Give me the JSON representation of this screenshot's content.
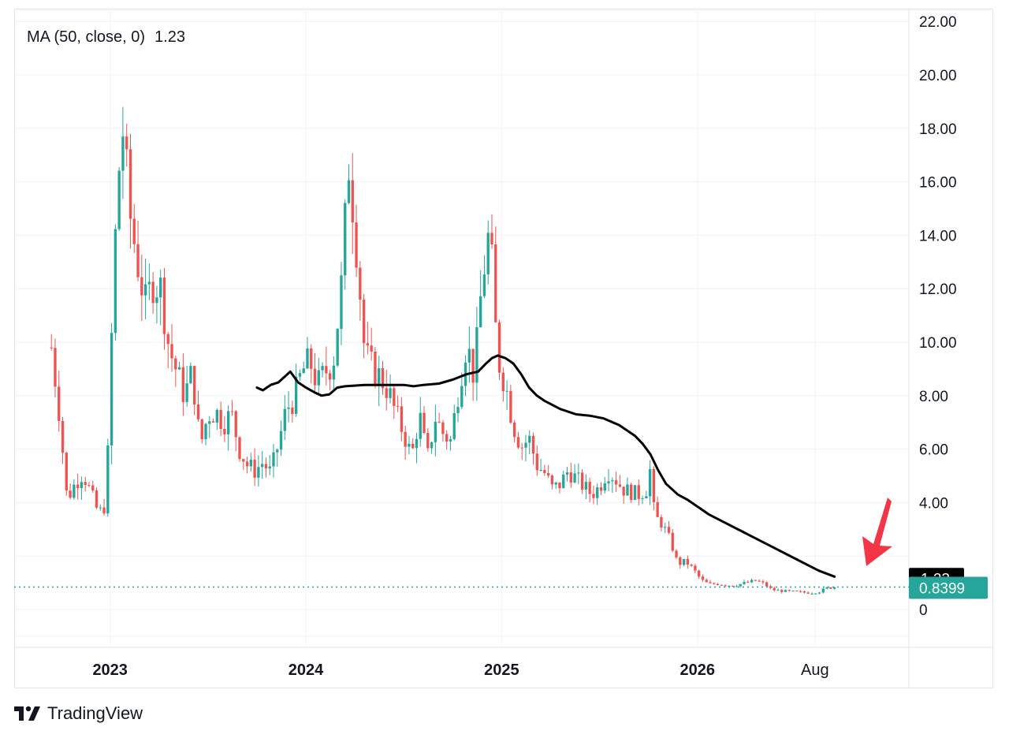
{
  "legend": {
    "label": "MA (50, close, 0)",
    "value": "1.23"
  },
  "brand": {
    "name": "TradingView"
  },
  "colors": {
    "up": "#26a69a",
    "down": "#ef5350",
    "ma": "#000000",
    "arrow": "#f23645",
    "grid": "#f0f3fa",
    "text": "#131722"
  },
  "price_tags": {
    "ma": "1.23",
    "last": "0.8399"
  },
  "chart_data": {
    "type": "candlestick",
    "symbol_interval": "weekly",
    "y_axis": {
      "ticks": [
        0,
        4,
        6,
        8,
        10,
        12,
        14,
        16,
        18,
        20,
        22
      ],
      "tick_labels": [
        "0",
        "4.00",
        "6.00",
        "8.00",
        "10.00",
        "12.00",
        "14.00",
        "16.00",
        "18.00",
        "20.00",
        "22.00"
      ],
      "range": [
        -1.5,
        22.5
      ],
      "position": "right"
    },
    "x_axis": {
      "ticks": [
        2023,
        2024,
        2025,
        2026,
        2026.6
      ],
      "tick_labels": [
        "2023",
        "2024",
        "2025",
        "2026",
        "Aug"
      ],
      "range": [
        2022.51,
        2027.08
      ]
    },
    "last_price": 0.8399,
    "ma": {
      "name": "MA (50, close, 0)",
      "last_value": 1.23
    },
    "price_checkpoints": [
      [
        2022.7,
        9.8
      ],
      [
        2022.74,
        7.4
      ],
      [
        2022.78,
        4.1
      ],
      [
        2022.82,
        4.7
      ],
      [
        2022.86,
        5.1
      ],
      [
        2022.9,
        4.4
      ],
      [
        2022.94,
        3.6
      ],
      [
        2022.98,
        3.9
      ],
      [
        2023.02,
        13.0
      ],
      [
        2023.06,
        18.4
      ],
      [
        2023.1,
        14.8
      ],
      [
        2023.14,
        13.0
      ],
      [
        2023.18,
        11.4
      ],
      [
        2023.22,
        12.3
      ],
      [
        2023.26,
        12.0
      ],
      [
        2023.3,
        9.8
      ],
      [
        2023.34,
        8.9
      ],
      [
        2023.38,
        8.0
      ],
      [
        2023.42,
        8.9
      ],
      [
        2023.46,
        6.1
      ],
      [
        2023.5,
        7.3
      ],
      [
        2023.54,
        7.4
      ],
      [
        2023.58,
        7.0
      ],
      [
        2023.62,
        7.3
      ],
      [
        2023.66,
        6.0
      ],
      [
        2023.7,
        5.4
      ],
      [
        2023.74,
        5.2
      ],
      [
        2023.78,
        5.5
      ],
      [
        2023.82,
        5.1
      ],
      [
        2023.86,
        6.2
      ],
      [
        2023.9,
        7.5
      ],
      [
        2023.94,
        7.9
      ],
      [
        2023.98,
        8.9
      ],
      [
        2024.02,
        9.3
      ],
      [
        2024.06,
        8.4
      ],
      [
        2024.1,
        8.9
      ],
      [
        2024.14,
        9.3
      ],
      [
        2024.18,
        12.0
      ],
      [
        2024.22,
        16.8
      ],
      [
        2024.26,
        13.5
      ],
      [
        2024.3,
        9.6
      ],
      [
        2024.34,
        9.0
      ],
      [
        2024.38,
        8.7
      ],
      [
        2024.42,
        8.2
      ],
      [
        2024.46,
        7.3
      ],
      [
        2024.5,
        6.6
      ],
      [
        2024.54,
        5.7
      ],
      [
        2024.58,
        7.3
      ],
      [
        2024.62,
        5.6
      ],
      [
        2024.66,
        7.2
      ],
      [
        2024.7,
        6.6
      ],
      [
        2024.74,
        6.3
      ],
      [
        2024.78,
        8.3
      ],
      [
        2024.82,
        10.0
      ],
      [
        2024.86,
        8.7
      ],
      [
        2024.9,
        12.3
      ],
      [
        2024.94,
        14.3
      ],
      [
        2024.96,
        11.4
      ],
      [
        2024.98,
        9.4
      ],
      [
        2025.02,
        8.4
      ],
      [
        2025.06,
        6.9
      ],
      [
        2025.1,
        6.1
      ],
      [
        2025.14,
        6.4
      ],
      [
        2025.18,
        5.4
      ],
      [
        2025.22,
        5.1
      ],
      [
        2025.26,
        4.5
      ],
      [
        2025.3,
        4.7
      ],
      [
        2025.34,
        5.2
      ],
      [
        2025.38,
        4.9
      ],
      [
        2025.42,
        4.6
      ],
      [
        2025.46,
        4.3
      ],
      [
        2025.5,
        4.6
      ],
      [
        2025.54,
        5.2
      ],
      [
        2025.58,
        4.9
      ],
      [
        2025.62,
        4.5
      ],
      [
        2025.66,
        4.4
      ],
      [
        2025.7,
        4.3
      ],
      [
        2025.74,
        4.5
      ],
      [
        2025.76,
        5.3
      ],
      [
        2025.78,
        3.5
      ],
      [
        2025.82,
        3.2
      ],
      [
        2025.86,
        2.6
      ],
      [
        2025.9,
        1.7
      ],
      [
        2025.94,
        1.8
      ],
      [
        2025.98,
        1.5
      ],
      [
        2026.02,
        1.1
      ],
      [
        2026.06,
        0.94
      ],
      [
        2026.1,
        0.97
      ],
      [
        2026.14,
        0.92
      ],
      [
        2026.18,
        0.9
      ],
      [
        2026.22,
        0.95
      ],
      [
        2026.26,
        1.02
      ],
      [
        2026.3,
        1.08
      ],
      [
        2026.34,
        0.96
      ],
      [
        2026.38,
        0.74
      ],
      [
        2026.42,
        0.7
      ],
      [
        2026.46,
        0.68
      ],
      [
        2026.5,
        0.66
      ],
      [
        2026.54,
        0.64
      ],
      [
        2026.58,
        0.62
      ],
      [
        2026.62,
        0.66
      ],
      [
        2026.66,
        0.8
      ],
      [
        2026.7,
        0.84
      ]
    ],
    "ma_checkpoints": [
      [
        2023.75,
        8.3
      ],
      [
        2023.78,
        8.2
      ],
      [
        2023.82,
        8.4
      ],
      [
        2023.86,
        8.5
      ],
      [
        2023.89,
        8.7
      ],
      [
        2023.92,
        8.9
      ],
      [
        2023.96,
        8.5
      ],
      [
        2024.0,
        8.3
      ],
      [
        2024.05,
        8.1
      ],
      [
        2024.08,
        8.0
      ],
      [
        2024.12,
        8.05
      ],
      [
        2024.16,
        8.3
      ],
      [
        2024.2,
        8.35
      ],
      [
        2024.3,
        8.4
      ],
      [
        2024.4,
        8.4
      ],
      [
        2024.5,
        8.4
      ],
      [
        2024.55,
        8.35
      ],
      [
        2024.6,
        8.4
      ],
      [
        2024.68,
        8.45
      ],
      [
        2024.75,
        8.6
      ],
      [
        2024.82,
        8.8
      ],
      [
        2024.88,
        8.9
      ],
      [
        2024.92,
        9.2
      ],
      [
        2024.95,
        9.4
      ],
      [
        2024.98,
        9.5
      ],
      [
        2025.02,
        9.4
      ],
      [
        2025.06,
        9.2
      ],
      [
        2025.1,
        8.8
      ],
      [
        2025.14,
        8.3
      ],
      [
        2025.18,
        8.0
      ],
      [
        2025.22,
        7.8
      ],
      [
        2025.3,
        7.5
      ],
      [
        2025.38,
        7.3
      ],
      [
        2025.45,
        7.25
      ],
      [
        2025.52,
        7.15
      ],
      [
        2025.6,
        6.9
      ],
      [
        2025.68,
        6.5
      ],
      [
        2025.72,
        6.2
      ],
      [
        2025.76,
        5.8
      ],
      [
        2025.8,
        5.2
      ],
      [
        2025.84,
        4.7
      ],
      [
        2025.9,
        4.3
      ],
      [
        2025.95,
        4.1
      ],
      [
        2026.0,
        3.85
      ],
      [
        2026.06,
        3.55
      ],
      [
        2026.14,
        3.25
      ],
      [
        2026.22,
        2.95
      ],
      [
        2026.3,
        2.65
      ],
      [
        2026.38,
        2.35
      ],
      [
        2026.46,
        2.05
      ],
      [
        2026.54,
        1.75
      ],
      [
        2026.62,
        1.45
      ],
      [
        2026.7,
        1.23
      ]
    ]
  }
}
